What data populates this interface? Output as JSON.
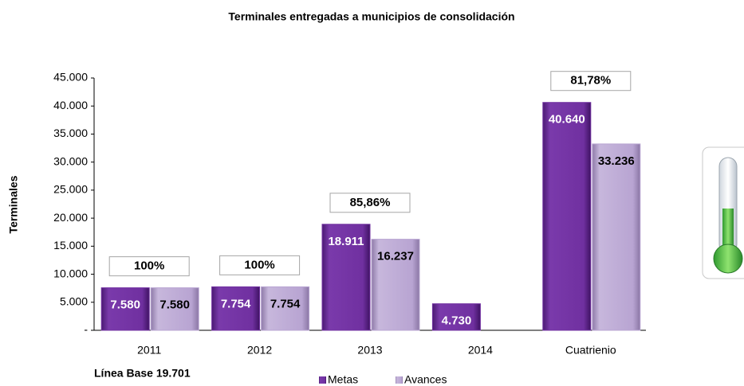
{
  "chart_data": {
    "type": "bar",
    "title": "Terminales  entregadas a municipios de consolidación",
    "y_label": "Terminales",
    "annotation": "Línea Base  19.701",
    "categories": [
      "2011",
      "2012",
      "2013",
      "2014",
      "Cuatrienio"
    ],
    "series": [
      {
        "name": "Metas",
        "color": "#7030a0",
        "values": [
          7580,
          7754,
          18911,
          4730,
          40640
        ],
        "value_labels": [
          "7.580",
          "7.754",
          "18.911",
          "4.730",
          "40.640"
        ]
      },
      {
        "name": "Avances",
        "color": "#b8a4d2",
        "values": [
          7580,
          7754,
          16237,
          null,
          33236
        ],
        "value_labels": [
          "7.580",
          "7.754",
          "16.237",
          null,
          "33.236"
        ]
      }
    ],
    "percent_labels": [
      "100%",
      "100%",
      "85,86%",
      null,
      "81,78%"
    ],
    "ylim": [
      0,
      45000
    ],
    "yticks": [
      {
        "value": 0,
        "label": "-"
      },
      {
        "value": 5000,
        "label": "5.000"
      },
      {
        "value": 10000,
        "label": "10.000"
      },
      {
        "value": 15000,
        "label": "15.000"
      },
      {
        "value": 20000,
        "label": "20.000"
      },
      {
        "value": 25000,
        "label": "25.000"
      },
      {
        "value": 30000,
        "label": "30.000"
      },
      {
        "value": 35000,
        "label": "35.000"
      },
      {
        "value": 40000,
        "label": "40.000"
      },
      {
        "value": 45000,
        "label": "45.000"
      }
    ],
    "legend": "bottom"
  }
}
